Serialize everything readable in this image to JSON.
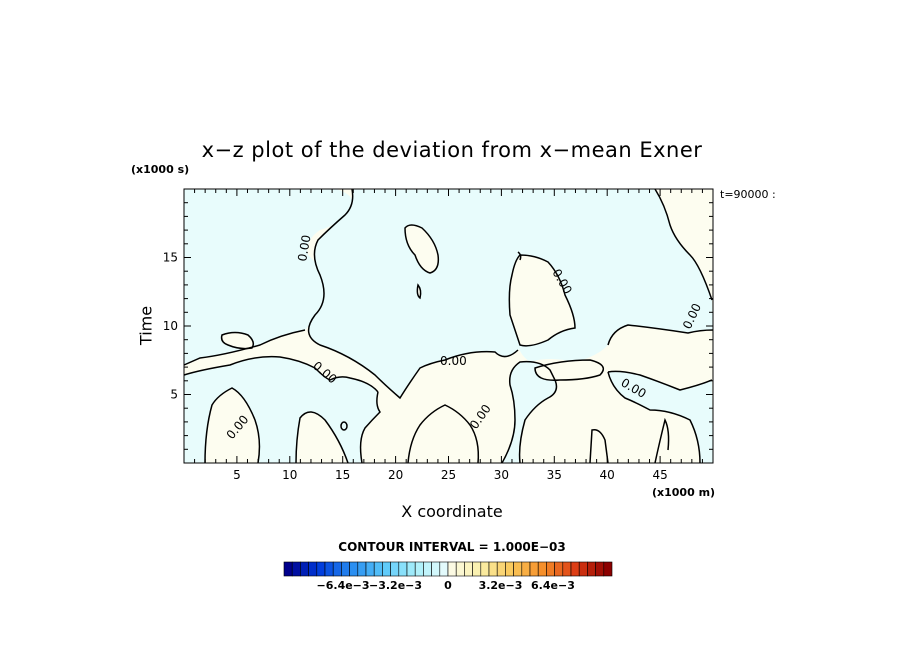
{
  "chart_data": {
    "type": "contour",
    "title": "x−z plot of the deviation from x−mean Exner",
    "xlabel": "X coordinate",
    "ylabel": "Time",
    "x_unit": "(x1000 m)",
    "y_unit": "(x1000 s)",
    "timestamp": "t=90000 :",
    "xlim": [
      0,
      50
    ],
    "ylim": [
      0,
      20
    ],
    "x_ticks": [
      5,
      10,
      15,
      20,
      25,
      30,
      35,
      40,
      45
    ],
    "y_ticks": [
      5,
      10,
      15
    ],
    "contour_level": "0.00",
    "contour_interval_label": "CONTOUR INTERVAL = 1.000E−03",
    "colorbar": {
      "tick_labels": [
        "−6.4e−3",
        "−3.2e−3",
        "0",
        "3.2e−3",
        "6.4e−3"
      ],
      "tick_values": [
        -0.0064,
        -0.0032,
        0,
        0.0032,
        0.0064
      ],
      "range": [
        -0.01,
        0.01
      ]
    },
    "colors": {
      "positive_fill": "#fdfdf0",
      "negative_fill": "#e8fcfc",
      "contour_line": "#000000"
    }
  }
}
